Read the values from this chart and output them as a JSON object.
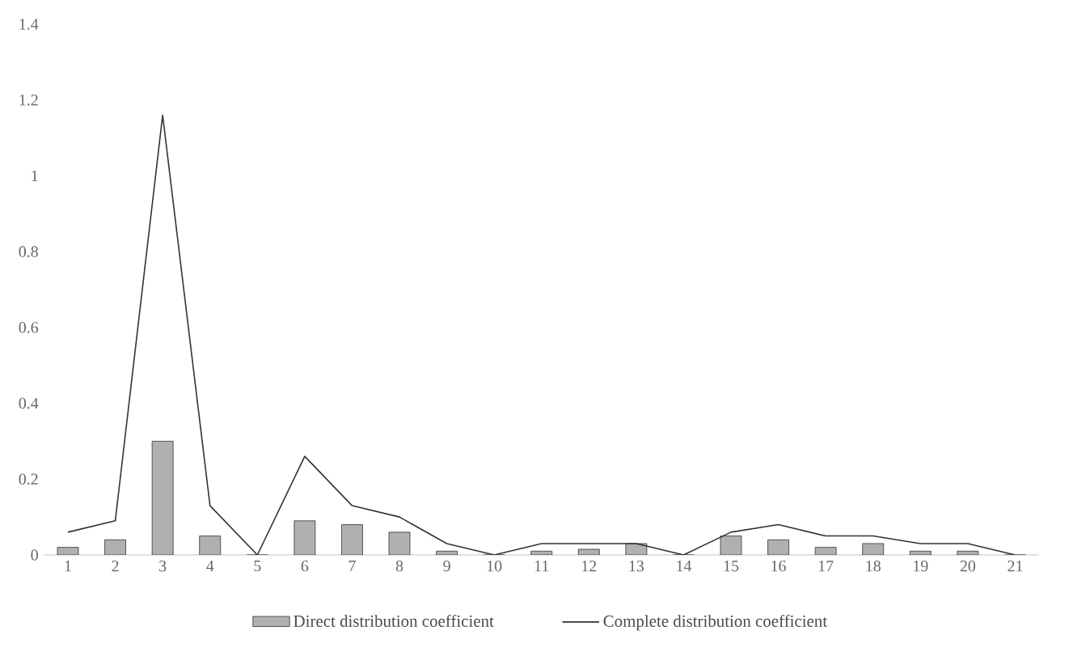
{
  "chart_data": {
    "type": "bar",
    "categories": [
      "1",
      "2",
      "3",
      "4",
      "5",
      "6",
      "7",
      "8",
      "9",
      "10",
      "11",
      "12",
      "13",
      "14",
      "15",
      "16",
      "17",
      "18",
      "19",
      "20",
      "21"
    ],
    "series": [
      {
        "name": "Direct distribution coefficient",
        "color": "#b0b0b0",
        "values": [
          0.02,
          0.04,
          0.3,
          0.05,
          0,
          0.09,
          0.08,
          0.06,
          0.01,
          0,
          0.01,
          0.015,
          0.03,
          0,
          0.05,
          0.04,
          0.02,
          0.03,
          0.01,
          0.01,
          0
        ]
      },
      {
        "name": "Complete distribution coefficient",
        "type": "line",
        "color": "#333333",
        "values": [
          0.06,
          0.09,
          1.16,
          0.13,
          0,
          0.26,
          0.13,
          0.1,
          0.03,
          0,
          0.03,
          0.03,
          0.03,
          0,
          0.06,
          0.08,
          0.05,
          0.05,
          0.03,
          0.03,
          0
        ]
      }
    ],
    "ylim": [
      0,
      1.4
    ],
    "yticks": [
      0,
      0.2,
      0.4,
      0.6,
      0.8,
      1,
      1.2,
      1.4
    ],
    "grid": false,
    "legend": "bottom",
    "marker": "none",
    "line_style": "solid"
  }
}
